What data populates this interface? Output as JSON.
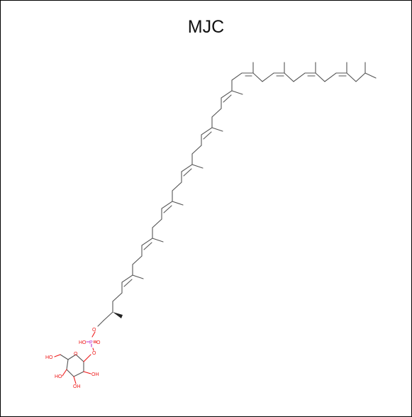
{
  "title": "MJC",
  "molecule": {
    "atoms": {
      "o_phosphate_ester": "O",
      "phosphorus": "P",
      "o_double": "O",
      "hydroxyl_p": "HO",
      "o_glycosidic": "O",
      "ring_o": "O",
      "ch2oh": "HO",
      "oh_c4": "HO",
      "oh_c3": "OH",
      "oh_c2": "OH"
    },
    "colors": {
      "bond": "#555555",
      "oxygen": "#ee1a1a",
      "phosphorus": "#bb33cc"
    }
  }
}
